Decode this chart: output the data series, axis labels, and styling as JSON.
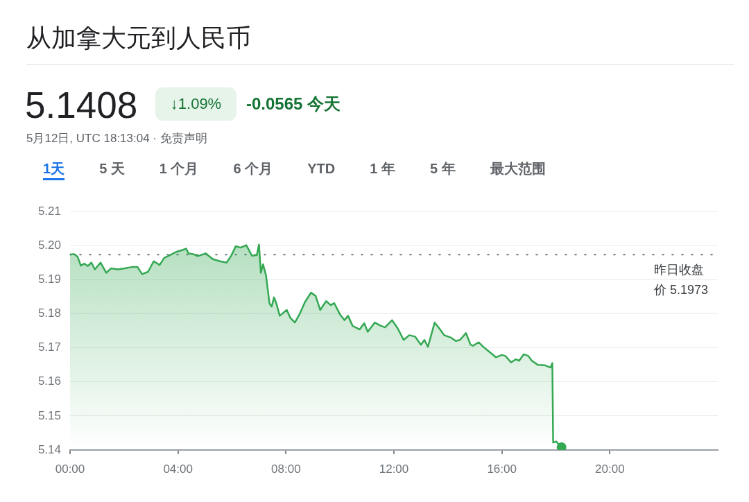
{
  "chart_data": {
    "type": "area",
    "title": "从加拿大元到人民币",
    "subtitle": "5月12日, UTC 18:13:04 · 免责声明",
    "annotations": [
      "5.1408",
      "↓1.09%",
      "-0.0565 今天",
      "1天",
      "5 天",
      "1 个月",
      "6 个月",
      "YTD",
      "1 年",
      "5 年",
      "最大范围"
    ],
    "xlim": [
      0,
      24
    ],
    "xticks": [
      {
        "value": 0,
        "label": "00:00"
      },
      {
        "value": 4,
        "label": "04:00"
      },
      {
        "value": 8,
        "label": "08:00"
      },
      {
        "value": 12,
        "label": "12:00"
      },
      {
        "value": 16,
        "label": "16:00"
      },
      {
        "value": 20,
        "label": "20:00"
      }
    ],
    "ylim": [
      5.14,
      5.21
    ],
    "yticks": [
      5.14,
      5.15,
      5.16,
      5.17,
      5.18,
      5.19,
      {
        "value": 5.2,
        "label": "5.20"
      },
      5.21
    ],
    "grid": "y",
    "legend": false,
    "ref_lines": [
      {
        "axis": "y",
        "value": 5.1973,
        "label": "昨日收盘价 5.1973",
        "line_style": "dotted",
        "color": "#5f6368"
      }
    ],
    "series": [
      {
        "color": "#34a853",
        "x": [
          0,
          0.15,
          0.28,
          0.4,
          0.53,
          0.66,
          0.79,
          0.92,
          1.13,
          1.34,
          1.52,
          1.77,
          2.03,
          2.29,
          2.5,
          2.67,
          2.89,
          3.1,
          3.32,
          3.49,
          3.66,
          3.92,
          4.17,
          4.3,
          4.39,
          4.56,
          4.73,
          5.03,
          5.29,
          5.55,
          5.8,
          5.97,
          6.14,
          6.32,
          6.53,
          6.74,
          6.92,
          7.0,
          7.07,
          7.15,
          7.26,
          7.39,
          7.47,
          7.56,
          7.64,
          7.77,
          8.03,
          8.16,
          8.33,
          8.5,
          8.71,
          8.93,
          9.1,
          9.27,
          9.49,
          9.66,
          9.79,
          10.0,
          10.17,
          10.3,
          10.47,
          10.73,
          10.9,
          11.03,
          11.29,
          11.5,
          11.67,
          11.93,
          12.14,
          12.36,
          12.57,
          12.78,
          13.0,
          13.13,
          13.26,
          13.51,
          13.68,
          13.86,
          14.11,
          14.29,
          14.45,
          14.67,
          14.84,
          14.93,
          15.14,
          15.31,
          15.57,
          15.78,
          16.0,
          16.13,
          16.34,
          16.51,
          16.64,
          16.81,
          16.98,
          17.11,
          17.33,
          17.58,
          17.8,
          17.87,
          17.9,
          18.01,
          18.21
        ],
        "values": [
          5.1974,
          5.1975,
          5.1967,
          5.1941,
          5.1947,
          5.194,
          5.195,
          5.193,
          5.195,
          5.192,
          5.1933,
          5.193,
          5.1933,
          5.1937,
          5.1937,
          5.1916,
          5.1923,
          5.1954,
          5.1943,
          5.1964,
          5.197,
          5.1981,
          5.1987,
          5.1991,
          5.1977,
          5.1975,
          5.1969,
          5.1977,
          5.196,
          5.1954,
          5.195,
          5.197,
          5.1998,
          5.1994,
          5.2001,
          5.197,
          5.1972,
          5.2003,
          5.192,
          5.1945,
          5.1913,
          5.183,
          5.1821,
          5.1848,
          5.1831,
          5.1794,
          5.1811,
          5.1788,
          5.1774,
          5.1798,
          5.1835,
          5.1862,
          5.1852,
          5.1811,
          5.1837,
          5.1825,
          5.1831,
          5.1798,
          5.1781,
          5.1794,
          5.1764,
          5.1754,
          5.1772,
          5.1747,
          5.1774,
          5.1765,
          5.176,
          5.1781,
          5.1757,
          5.1723,
          5.1737,
          5.1733,
          5.1709,
          5.1723,
          5.1703,
          5.1774,
          5.1757,
          5.1737,
          5.173,
          5.172,
          5.1723,
          5.1743,
          5.1709,
          5.1706,
          5.1716,
          5.1703,
          5.1686,
          5.1672,
          5.1679,
          5.1676,
          5.1657,
          5.1666,
          5.1662,
          5.1681,
          5.1676,
          5.1662,
          5.165,
          5.1649,
          5.1642,
          5.1655,
          5.1422,
          5.1425,
          5.1408
        ]
      },
      {
        "type": "scatter",
        "color": "#34a853",
        "marker": "circle",
        "x": [
          18.21
        ],
        "values": [
          5.1408
        ]
      }
    ]
  }
}
